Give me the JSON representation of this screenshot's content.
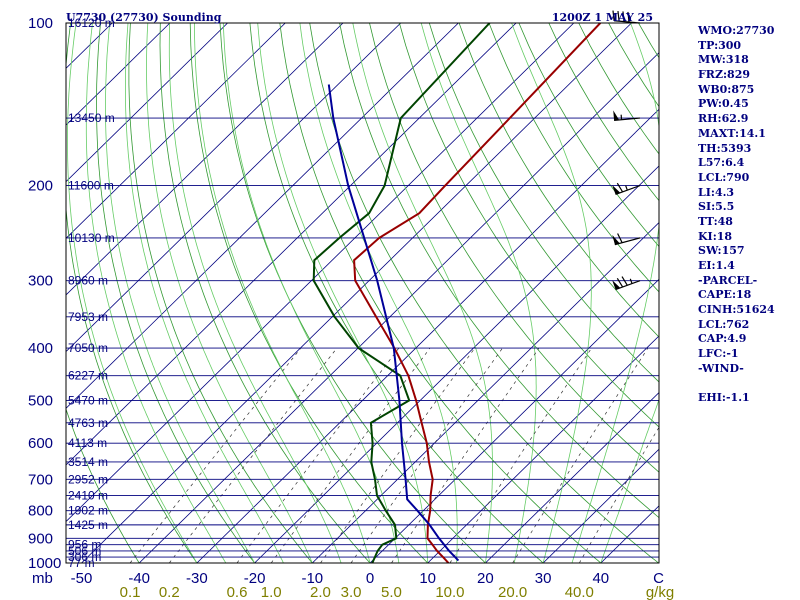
{
  "header": {
    "station": "U7730 (27730) Sounding",
    "time": "1200Z  1 MAY 25"
  },
  "colors": {
    "frame": "#000000",
    "isobar": "#00007f",
    "isotherm": "#00007f",
    "dry_adiabat": "#339933",
    "moist_adiabat": "#66cc66",
    "mixing_ratio": "#333333",
    "temperature": "#990000",
    "dewpoint": "#004400",
    "parcel": "#000099",
    "wind": "#000000",
    "text": "#00007f",
    "mixing_label": "#7f7f00",
    "frost_line": "#3399cc"
  },
  "chart_data": {
    "type": "line",
    "diagram": "skew-T log-P",
    "xlabel": "C",
    "ylabel": "mb",
    "xlim": [
      -50,
      50
    ],
    "ylim": [
      1000,
      100
    ],
    "x_ticks": [
      -50,
      -40,
      -30,
      -20,
      -10,
      0,
      10,
      20,
      30,
      40,
      50
    ],
    "x_tick_labels": [
      "-50",
      "-40",
      "-30",
      "-20",
      "-10",
      "0",
      "10",
      "20",
      "30",
      "40",
      "C"
    ],
    "y_tick_labels": [
      "mb",
      "1000",
      "900",
      "800",
      "700",
      "600",
      "500",
      "400",
      "300",
      "200",
      "100"
    ],
    "pressure_levels": [
      1000,
      900,
      800,
      700,
      600,
      500,
      400,
      300,
      200,
      100
    ],
    "height_levels": [
      {
        "p": 1000,
        "label": "77 m"
      },
      {
        "p": 975,
        "label": "306 m"
      },
      {
        "p": 950,
        "label": "506 m"
      },
      {
        "p": 925,
        "label": "956 m"
      },
      {
        "p": 850,
        "label": "1425 m"
      },
      {
        "p": 800,
        "label": "1902 m"
      },
      {
        "p": 750,
        "label": "2410 m"
      },
      {
        "p": 700,
        "label": "2952 m"
      },
      {
        "p": 650,
        "label": "3514 m"
      },
      {
        "p": 600,
        "label": "4113 m"
      },
      {
        "p": 550,
        "label": "4763 m"
      },
      {
        "p": 500,
        "label": "5470 m"
      },
      {
        "p": 450,
        "label": "6227 m"
      },
      {
        "p": 400,
        "label": "7050 m"
      },
      {
        "p": 350,
        "label": "7953 m"
      },
      {
        "p": 300,
        "label": "8960 m"
      },
      {
        "p": 250,
        "label": "10130 m"
      },
      {
        "p": 200,
        "label": "11600 m"
      },
      {
        "p": 150,
        "label": "13450 m"
      },
      {
        "p": 100,
        "label": "16120 m"
      }
    ],
    "mixing_ratio_labels": [
      "0.1",
      "0.2",
      "0.6",
      "1.0",
      "2.0",
      "3.0",
      "5.0",
      "10.0",
      "20.0",
      "40.0",
      "g/kg"
    ],
    "series": [
      {
        "key": "temperature",
        "points": [
          [
            1000,
            13.6
          ],
          [
            975,
            11.6
          ],
          [
            950,
            9.5
          ],
          [
            925,
            7.6
          ],
          [
            900,
            5.6
          ],
          [
            850,
            3.3
          ],
          [
            800,
            1.2
          ],
          [
            750,
            -1.4
          ],
          [
            700,
            -3.9
          ],
          [
            650,
            -7.6
          ],
          [
            600,
            -11.3
          ],
          [
            550,
            -15.8
          ],
          [
            500,
            -20.7
          ],
          [
            450,
            -26.4
          ],
          [
            400,
            -33.7
          ],
          [
            350,
            -42.4
          ],
          [
            300,
            -52.4
          ],
          [
            275,
            -56.2
          ],
          [
            250,
            -55.8
          ],
          [
            225,
            -53.2
          ],
          [
            200,
            -53.6
          ],
          [
            150,
            -54.3
          ],
          [
            100,
            -55.4
          ]
        ]
      },
      {
        "key": "dewpoint",
        "points": [
          [
            1000,
            0.4
          ],
          [
            975,
            -0.2
          ],
          [
            950,
            -0.8
          ],
          [
            925,
            -1.1
          ],
          [
            900,
            0.2
          ],
          [
            850,
            -2.4
          ],
          [
            800,
            -6.5
          ],
          [
            750,
            -10.7
          ],
          [
            700,
            -13.9
          ],
          [
            650,
            -17.6
          ],
          [
            600,
            -20.7
          ],
          [
            550,
            -24.6
          ],
          [
            500,
            -21.9
          ],
          [
            450,
            -27.8
          ],
          [
            400,
            -39.9
          ],
          [
            350,
            -49.6
          ],
          [
            300,
            -59.6
          ],
          [
            275,
            -63.1
          ],
          [
            250,
            -62.7
          ],
          [
            225,
            -61.9
          ],
          [
            200,
            -64.1
          ],
          [
            150,
            -73.2
          ],
          [
            100,
            -74.6
          ]
        ]
      },
      {
        "key": "parcel",
        "points": [
          [
            990,
            14.9
          ],
          [
            950,
            11.6
          ],
          [
            900,
            7.6
          ],
          [
            850,
            3.6
          ],
          [
            800,
            -1.0
          ],
          [
            762,
            -4.8
          ],
          [
            700,
            -8.6
          ],
          [
            600,
            -15.6
          ],
          [
            500,
            -23.6
          ],
          [
            400,
            -33.8
          ],
          [
            300,
            -48.6
          ],
          [
            250,
            -58.4
          ],
          [
            200,
            -70.4
          ],
          [
            150,
            -84.9
          ],
          [
            130,
            -91.6
          ]
        ]
      }
    ],
    "wind_barbs": [
      {
        "p": 100,
        "dir": 275,
        "kt": 40
      },
      {
        "p": 150,
        "dir": 265,
        "kt": 55
      },
      {
        "p": 200,
        "dir": 250,
        "kt": 65
      },
      {
        "p": 250,
        "dir": 255,
        "kt": 60
      },
      {
        "p": 300,
        "dir": 250,
        "kt": 75
      }
    ]
  },
  "indices": [
    "WMO:27730",
    "TP:300",
    "MW:318",
    "FRZ:829",
    "WB0:875",
    "PW:0.45",
    "RH:62.9",
    "MAXT:14.1",
    "TH:5393",
    "L57:6.4",
    "LCL:790",
    "LI:4.3",
    "SI:5.5",
    "TT:48",
    "KI:18",
    "SW:157",
    "EI:1.4",
    "-PARCEL-",
    "CAPE:18",
    "CINH:51624",
    "LCL:762",
    "CAP:4.9",
    "LFC:-1",
    "-WIND-",
    "",
    "EHI:-1.1"
  ]
}
